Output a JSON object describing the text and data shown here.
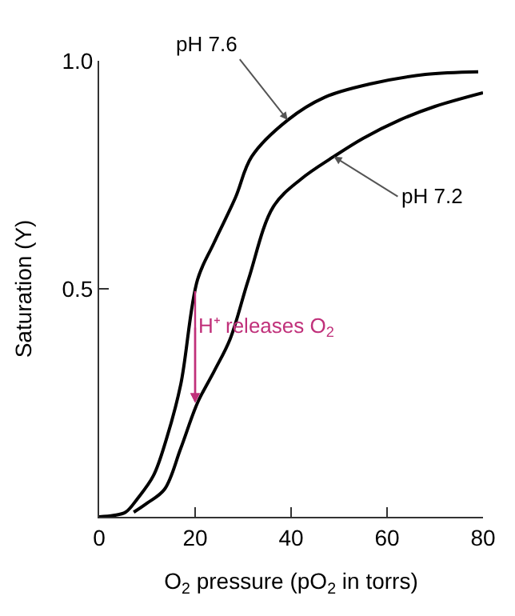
{
  "chart_data": {
    "type": "line",
    "xlabel": "O$_{2}$ pressure (pO$_{2}$ in torrs)",
    "ylabel": "Saturation (Y)",
    "series": [
      {
        "color": "#000000",
        "x": [
          0,
          3,
          5.5,
          8,
          11.3,
          14,
          17,
          20.5,
          23.9,
          28.4,
          31.8,
          39.3,
          47,
          56.8,
          68,
          79
        ],
        "values": [
          0,
          0.003,
          0.01,
          0.04,
          0.09,
          0.17,
          0.29,
          0.52,
          0.6,
          0.7,
          0.79,
          0.87,
          0.92,
          0.95,
          0.97,
          0.976
        ]
      },
      {
        "color": "#000000",
        "x": [
          7.2,
          10,
          13.6,
          17,
          20.5,
          24,
          27.3,
          31.1,
          36.3,
          42,
          48.9,
          55,
          62.6,
          70,
          80
        ],
        "values": [
          0.01,
          0.03,
          0.06,
          0.15,
          0.25,
          0.32,
          0.39,
          0.52,
          0.68,
          0.74,
          0.79,
          0.83,
          0.87,
          0.9,
          0.93
        ]
      }
    ],
    "annotations": [
      {
        "text": "pH 7.6",
        "x": 39.3,
        "y": 0.87
      },
      {
        "text": "pH 7.2",
        "x": 48.9,
        "y": 0.79
      },
      {
        "text": "H⁺ releases O$_{2}$",
        "x": 20,
        "y": 0.25
      }
    ],
    "xlim": [
      0,
      80
    ],
    "xticks": [
      0,
      20,
      40,
      60,
      80
    ],
    "ylim": [
      0,
      1.0
    ],
    "yticks": [
      {
        "value": 0.5,
        "label": "0.5"
      },
      {
        "value": 1.0,
        "label": "1.0"
      }
    ],
    "marker": "none",
    "line_style": "solid"
  }
}
